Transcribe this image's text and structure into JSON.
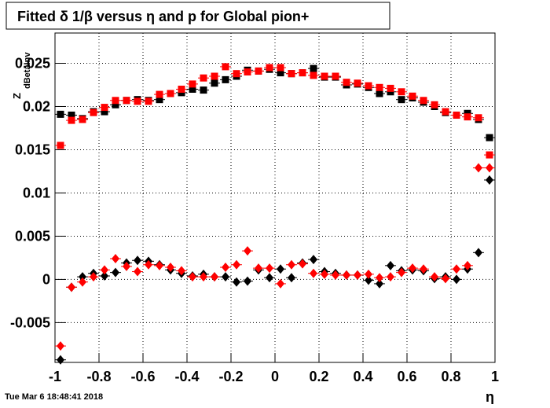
{
  "chart_data": {
    "type": "scatter",
    "title": "Fitted δ 1/β versus η and p for Global pion+",
    "ylabel": "Z",
    "ylabel_sub": "dBetaInv",
    "xlabel": "η",
    "timestamp": "Tue Mar  6 18:48:41 2018",
    "xlim": [
      -1,
      1
    ],
    "ylim": [
      -0.0096,
      0.0285
    ],
    "xticks": [
      -1,
      -0.8,
      -0.6,
      -0.4,
      -0.2,
      0,
      0.2,
      0.4,
      0.6,
      0.8,
      1
    ],
    "yticks": [
      -0.005,
      0,
      0.005,
      0.01,
      0.015,
      0.02,
      0.025
    ],
    "grid": true,
    "x": [
      -0.975,
      -0.925,
      -0.875,
      -0.825,
      -0.775,
      -0.725,
      -0.675,
      -0.625,
      -0.575,
      -0.525,
      -0.475,
      -0.425,
      -0.375,
      -0.325,
      -0.275,
      -0.225,
      -0.175,
      -0.125,
      -0.075,
      -0.025,
      0.025,
      0.075,
      0.125,
      0.175,
      0.225,
      0.275,
      0.325,
      0.375,
      0.425,
      0.475,
      0.525,
      0.575,
      0.625,
      0.675,
      0.725,
      0.775,
      0.825,
      0.875,
      0.925,
      0.975
    ],
    "series": [
      {
        "color": "#000000",
        "marker": "square",
        "values": [
          0.0191,
          0.019,
          0.0186,
          0.0194,
          0.0194,
          0.0202,
          0.0207,
          0.0208,
          0.0207,
          0.0208,
          0.0215,
          0.0216,
          0.022,
          0.0219,
          0.0227,
          0.0231,
          0.0235,
          0.0242,
          0.0241,
          0.0243,
          0.0239,
          0.0238,
          0.0239,
          0.0244,
          0.0234,
          0.0234,
          0.0225,
          0.0226,
          0.0222,
          0.0215,
          0.0217,
          0.0208,
          0.021,
          0.0205,
          0.02,
          0.0193,
          0.019,
          0.0192,
          0.0185,
          0.0164
        ]
      },
      {
        "color": "#ff0000",
        "marker": "square",
        "values": [
          0.0155,
          0.0184,
          0.0185,
          0.0193,
          0.0199,
          0.0207,
          0.0207,
          0.0206,
          0.0206,
          0.0214,
          0.0215,
          0.022,
          0.0226,
          0.0233,
          0.0235,
          0.0246,
          0.0238,
          0.024,
          0.0241,
          0.0245,
          0.0245,
          0.0238,
          0.0239,
          0.0236,
          0.0235,
          0.0235,
          0.0228,
          0.0227,
          0.0224,
          0.0222,
          0.0221,
          0.0217,
          0.0212,
          0.0207,
          0.0202,
          0.0194,
          0.019,
          0.0188,
          0.0187,
          0.0144
        ]
      },
      {
        "color": "#000000",
        "marker": "diamond",
        "values": [
          -0.0093,
          -0.0009,
          0.0003,
          0.0007,
          0.0004,
          0.0008,
          0.0019,
          0.0022,
          0.0021,
          0.0017,
          0.0011,
          0.0007,
          0.0004,
          0.0006,
          0.0003,
          0.0003,
          -0.0003,
          -0.0002,
          0.0011,
          0.0002,
          0.0012,
          0.0002,
          0.0019,
          0.0023,
          0.0009,
          0.0007,
          0.0005,
          0.0005,
          -0.0001,
          -0.0005,
          0.0016,
          0.001,
          0.0011,
          0.001,
          0.0001,
          0.0003,
          0.0,
          0.0012,
          0.0031,
          0.0115
        ]
      },
      {
        "color": "#ff0000",
        "marker": "diamond",
        "values": [
          -0.0077,
          -0.0009,
          -0.0003,
          0.0003,
          0.0011,
          0.0024,
          0.0015,
          0.0009,
          0.0017,
          0.0016,
          0.0014,
          0.001,
          0.0003,
          0.0003,
          0.0003,
          0.0014,
          0.0017,
          0.0033,
          0.0013,
          0.0013,
          -0.0005,
          0.0017,
          0.0018,
          0.0007,
          0.0006,
          0.0005,
          0.0005,
          0.0005,
          0.0006,
          0.0002,
          0.0003,
          0.0008,
          0.0013,
          0.0012,
          0.0003,
          0.0001,
          0.0012,
          0.0016,
          0.0129,
          0.0129
        ]
      }
    ]
  }
}
